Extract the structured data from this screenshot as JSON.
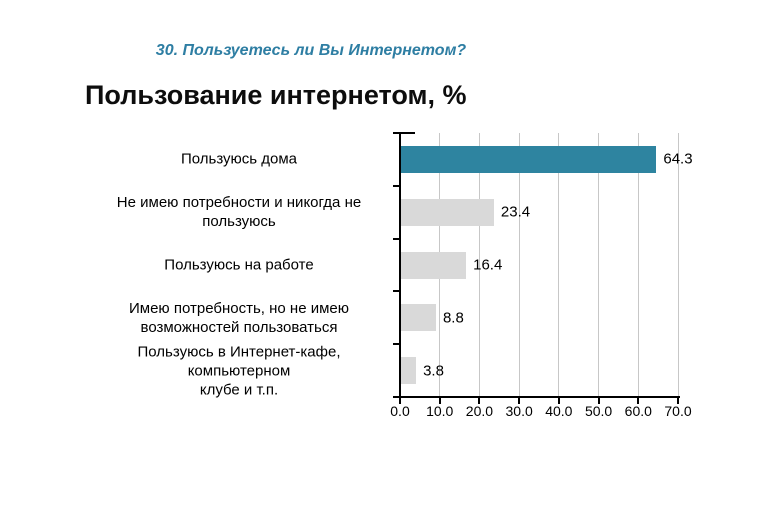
{
  "page": {
    "subtitle": "30. Пользуетесь ли Вы Интернетом?",
    "title": "Пользование интернетом, %"
  },
  "colors": {
    "accent_teal": "#2e84a0",
    "bar_gray": "#d9d9d9",
    "gridline": "#c7c7c7",
    "axis": "#000000",
    "subtitle_teal": "#2e7ea3",
    "title_text": "#0d0d0d"
  },
  "chart_data": {
    "type": "bar",
    "orientation": "horizontal",
    "title": "Пользование интернетом, %",
    "categories": [
      "Пользуюсь дома",
      "Не имею потребности и никогда не\nпользуюсь",
      "Пользуюсь на работе",
      "Имею потребность, но не имею\nвозможностей пользоваться",
      "Пользуюсь в Интернет-кафе, компьютерном\nклубе и т.п."
    ],
    "values": [
      64.3,
      23.4,
      16.4,
      8.8,
      3.8
    ],
    "value_labels": [
      "64.3",
      "23.4",
      "16.4",
      "8.8",
      "3.8"
    ],
    "bar_colors": [
      "#2e84a0",
      "#d9d9d9",
      "#d9d9d9",
      "#d9d9d9",
      "#d9d9d9"
    ],
    "xlabel": "",
    "ylabel": "",
    "xlim": [
      0,
      70
    ],
    "xticks": [
      "0.0",
      "10.0",
      "20.0",
      "30.0",
      "40.0",
      "50.0",
      "60.0",
      "70.0"
    ],
    "grid": true,
    "legend": false
  }
}
